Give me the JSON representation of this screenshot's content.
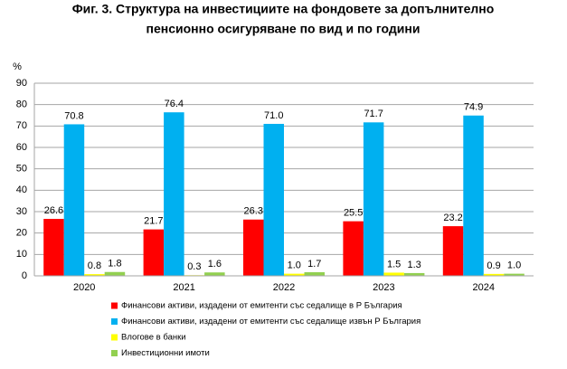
{
  "chart_data": {
    "type": "bar",
    "title": [
      "Фиг. 3. Структура на инвестициите на фондовете за допълнително",
      "пенсионно осигуряване по вид и по години"
    ],
    "y_label": "%",
    "categories": [
      "2020",
      "2021",
      "2022",
      "2023",
      "2024"
    ],
    "series": [
      {
        "name": "Финансови активи, издадени от емитенти със седалище в Р България",
        "color": "#ff0000",
        "values": [
          26.6,
          21.7,
          26.3,
          25.5,
          23.2
        ],
        "value_labels": [
          "26.6",
          "21.7",
          "26.3",
          "25.5",
          "23.2"
        ]
      },
      {
        "name": "Финансови активи, издадени от емитенти със седалище извън Р България",
        "color": "#00b0f0",
        "values": [
          70.8,
          76.4,
          71.0,
          71.7,
          74.9
        ],
        "value_labels": [
          "70.8",
          "76.4",
          "71.0",
          "71.7",
          "74.9"
        ]
      },
      {
        "name": "Влогове в банки",
        "color": "#ffff00",
        "values": [
          0.8,
          0.3,
          1.0,
          1.5,
          0.9
        ],
        "value_labels": [
          "0.8",
          "0.3",
          "1.0",
          "1.5",
          "0.9"
        ]
      },
      {
        "name": "Инвестиционни имоти",
        "color": "#92d050",
        "values": [
          1.8,
          1.6,
          1.7,
          1.3,
          1.0
        ],
        "value_labels": [
          "1.8",
          "1.6",
          "1.7",
          "1.3",
          "1.0"
        ]
      }
    ],
    "ylim": [
      0,
      90
    ],
    "yticks": [
      0,
      10,
      20,
      30,
      40,
      50,
      60,
      70,
      80,
      90
    ],
    "grid": true,
    "legend": "bottom"
  }
}
